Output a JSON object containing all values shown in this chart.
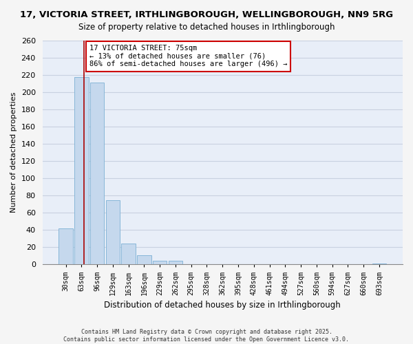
{
  "title": "17, VICTORIA STREET, IRTHLINGBOROUGH, WELLINGBOROUGH, NN9 5RG",
  "subtitle": "Size of property relative to detached houses in Irthlingborough",
  "xlabel": "Distribution of detached houses by size in Irthlingborough",
  "ylabel": "Number of detached properties",
  "bar_labels": [
    "30sqm",
    "63sqm",
    "96sqm",
    "129sqm",
    "163sqm",
    "196sqm",
    "229sqm",
    "262sqm",
    "295sqm",
    "328sqm",
    "362sqm",
    "395sqm",
    "428sqm",
    "461sqm",
    "494sqm",
    "527sqm",
    "560sqm",
    "594sqm",
    "627sqm",
    "660sqm",
    "693sqm"
  ],
  "bar_values": [
    42,
    218,
    211,
    75,
    24,
    11,
    4,
    4,
    0,
    0,
    0,
    0,
    0,
    0,
    0,
    0,
    0,
    0,
    0,
    0,
    1
  ],
  "bar_color": "#c5d8ed",
  "bar_edge_color": "#7bafd4",
  "vline_x": 1.18,
  "vline_color": "#aa0000",
  "ylim": [
    0,
    260
  ],
  "yticks": [
    0,
    20,
    40,
    60,
    80,
    100,
    120,
    140,
    160,
    180,
    200,
    220,
    240,
    260
  ],
  "annotation_title": "17 VICTORIA STREET: 75sqm",
  "annotation_line1": "← 13% of detached houses are smaller (76)",
  "annotation_line2": "86% of semi-detached houses are larger (496) →",
  "footer_line1": "Contains HM Land Registry data © Crown copyright and database right 2025.",
  "footer_line2": "Contains public sector information licensed under the Open Government Licence v3.0.",
  "plot_bg_color": "#e8eef8",
  "fig_bg_color": "#f5f5f5",
  "grid_color": "#c8d0e0",
  "annotation_box_color": "#ffffff",
  "annotation_border_color": "#cc0000"
}
